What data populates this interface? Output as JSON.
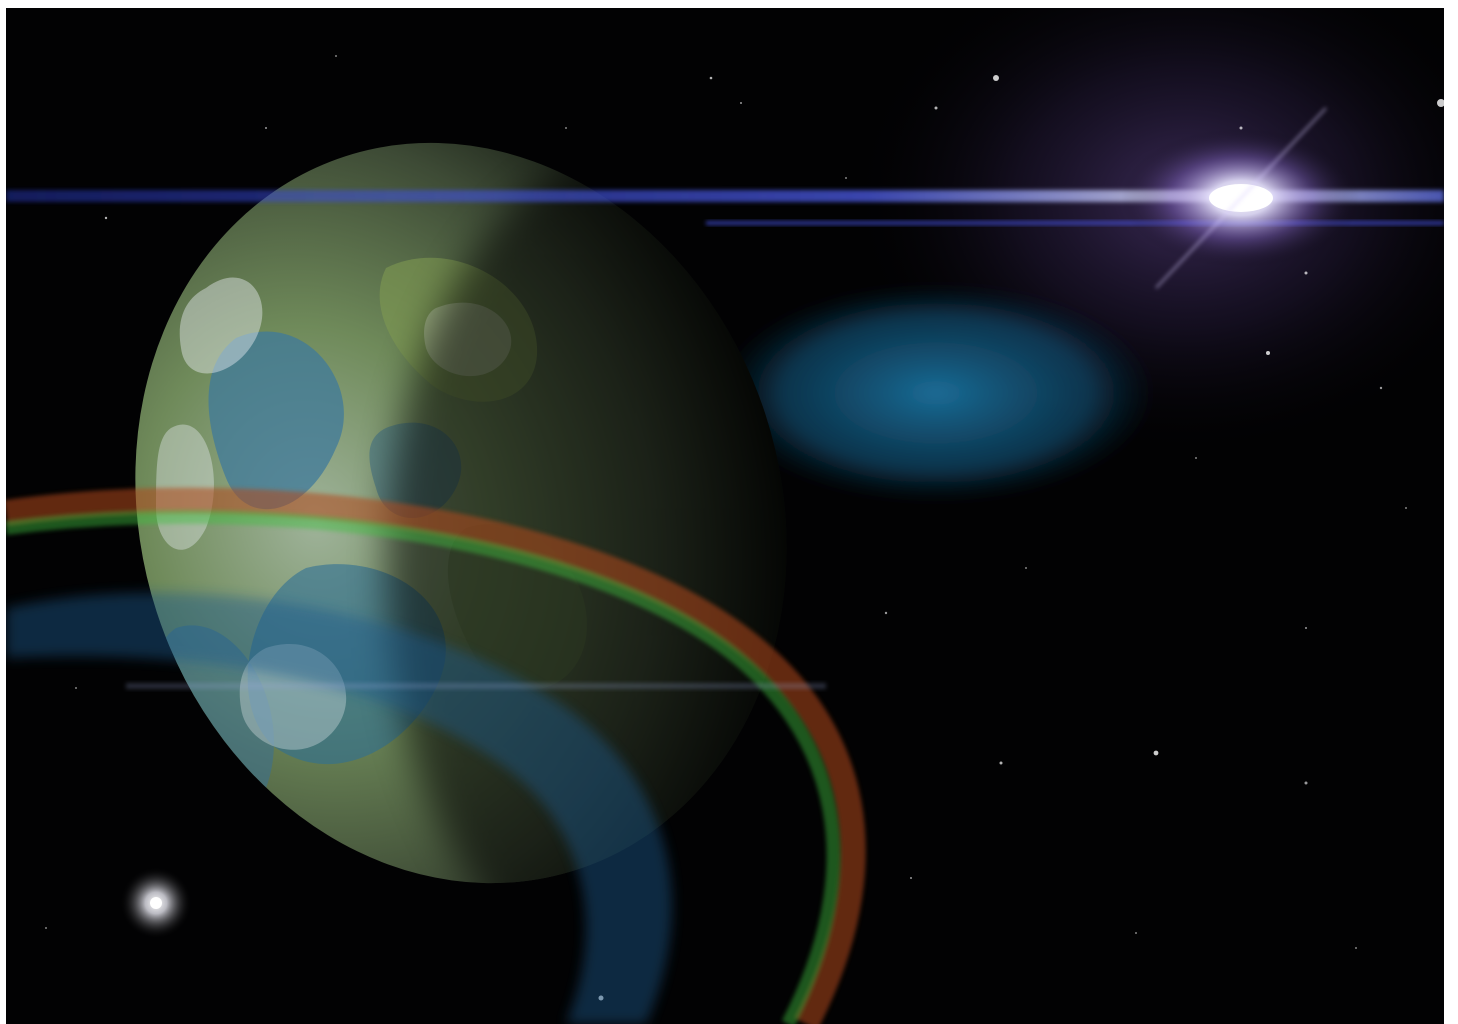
{
  "scene": {
    "subject": "planet-in-space",
    "colors": {
      "space": "#020203",
      "planet_land": "#6f8a4a",
      "planet_ocean": "#2a6f8f",
      "planet_clouds": "#dfe6ea",
      "lens_flare_blue": "#4a5cff",
      "glow_cyan": "#1e6f9e",
      "nebula_purple": "#5a3f86",
      "ring_green": "#3fbf3f",
      "ring_red": "#b04a1c"
    }
  }
}
